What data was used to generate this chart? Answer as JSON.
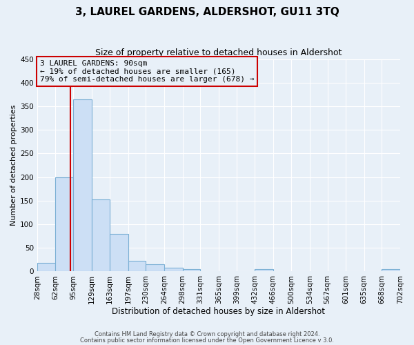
{
  "title": "3, LAUREL GARDENS, ALDERSHOT, GU11 3TQ",
  "subtitle": "Size of property relative to detached houses in Aldershot",
  "xlabel": "Distribution of detached houses by size in Aldershot",
  "ylabel": "Number of detached properties",
  "footnote1": "Contains HM Land Registry data © Crown copyright and database right 2024.",
  "footnote2": "Contains public sector information licensed under the Open Government Licence v 3.0.",
  "bin_edges": [
    28,
    62,
    95,
    129,
    163,
    197,
    230,
    264,
    298,
    331,
    365,
    399,
    432,
    466,
    500,
    534,
    567,
    601,
    635,
    668,
    702
  ],
  "bar_heights": [
    18,
    200,
    365,
    153,
    79,
    22,
    15,
    8,
    5,
    0,
    0,
    0,
    5,
    0,
    0,
    0,
    0,
    0,
    0,
    5
  ],
  "bar_color": "#ccdff5",
  "bar_edge_color": "#7aafd4",
  "vline_x": 90,
  "vline_color": "#cc0000",
  "ylim": [
    0,
    450
  ],
  "yticks": [
    0,
    50,
    100,
    150,
    200,
    250,
    300,
    350,
    400,
    450
  ],
  "annotation_title": "3 LAUREL GARDENS: 90sqm",
  "annotation_line1": "← 19% of detached houses are smaller (165)",
  "annotation_line2": "79% of semi-detached houses are larger (678) →",
  "annotation_box_color": "#cc0000",
  "bg_color": "#e8f0f8",
  "grid_color": "#ffffff",
  "title_fontsize": 11,
  "subtitle_fontsize": 9,
  "tick_fontsize": 7.5,
  "ylabel_fontsize": 8,
  "xlabel_fontsize": 8.5
}
